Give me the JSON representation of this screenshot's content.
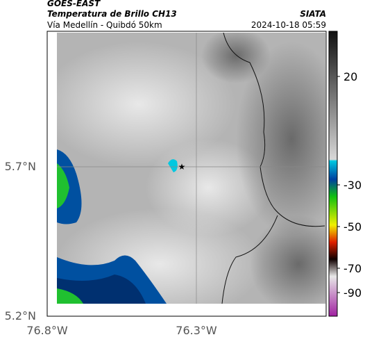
{
  "header": {
    "satellite": "GOES-EAST",
    "product": "Temperatura de Brillo CH13",
    "region": "Vía Medellín - Quibdó 50km",
    "source": "SIATA",
    "timestamp": "2024-10-18 05:59"
  },
  "axes": {
    "lat_labels": [
      "5.7°N",
      "5.2°N"
    ],
    "lon_labels": [
      "76.8°W",
      "76.3°W"
    ]
  },
  "colorbar": {
    "labels": [
      "20",
      "-30",
      "-50",
      "-70",
      "-90"
    ]
  }
}
